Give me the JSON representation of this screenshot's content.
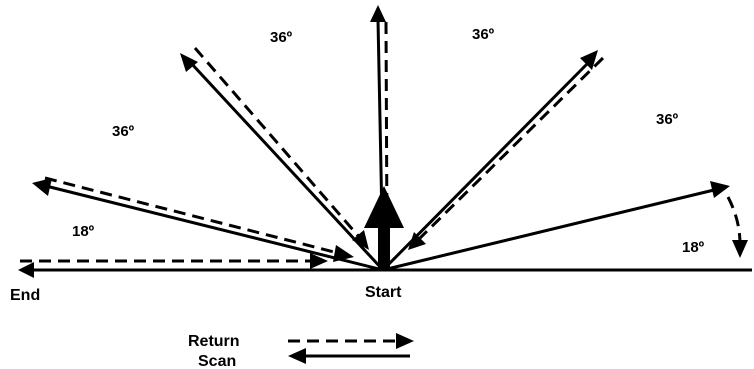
{
  "labels": {
    "end": "End",
    "start": "Start",
    "angle_top_left": "36º",
    "angle_top_right": "36º",
    "angle_left": "36º",
    "angle_right": "36º",
    "angle_lower_left": "18º",
    "angle_lower_right": "18º"
  },
  "legend": {
    "return_label": "Return",
    "scan_label": "Scan"
  },
  "colors": {
    "ink": "#000000",
    "background": "#ffffff"
  }
}
